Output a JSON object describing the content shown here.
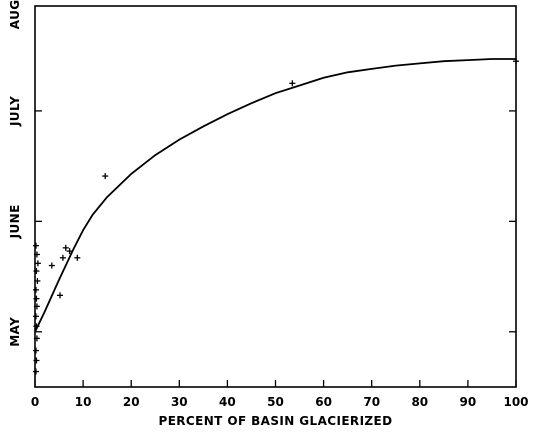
{
  "chart_data": {
    "type": "scatter",
    "title": "",
    "xlabel": "PERCENT OF BASIN GLACIERIZED",
    "ylabel": "",
    "xlim": [
      0,
      100
    ],
    "ylim": [
      0,
      3.45
    ],
    "x_ticks": [
      0,
      10,
      20,
      30,
      40,
      50,
      60,
      70,
      80,
      90,
      100
    ],
    "y_ticks": [
      0.5,
      1.5,
      2.5
    ],
    "y_month_labels": [
      {
        "label": "MAY",
        "value": 0.0
      },
      {
        "label": "JUNE",
        "value": 1.0
      },
      {
        "label": "JULY",
        "value": 2.0
      },
      {
        "label": "AUGUST",
        "value": 3.0
      }
    ],
    "grid": false,
    "series": [
      {
        "kind": "points",
        "marker": "+",
        "points": [
          [
            0.2,
            0.14
          ],
          [
            0.3,
            0.24
          ],
          [
            0.2,
            0.33
          ],
          [
            0.4,
            0.44
          ],
          [
            0.3,
            0.55
          ],
          [
            0.2,
            0.64
          ],
          [
            0.4,
            0.73
          ],
          [
            0.3,
            0.8
          ],
          [
            0.2,
            0.88
          ],
          [
            0.5,
            0.96
          ],
          [
            0.3,
            1.05
          ],
          [
            0.6,
            1.12
          ],
          [
            0.4,
            1.2
          ],
          [
            0.2,
            1.28
          ],
          [
            3.5,
            1.1
          ],
          [
            5.2,
            0.83
          ],
          [
            5.8,
            1.17
          ],
          [
            6.4,
            1.26
          ],
          [
            7.2,
            1.23
          ],
          [
            8.8,
            1.17
          ],
          [
            14.6,
            1.91
          ],
          [
            53.5,
            2.75
          ],
          [
            100.0,
            2.95
          ]
        ]
      },
      {
        "kind": "fitted-curve",
        "points": [
          [
            0,
            0.5
          ],
          [
            2,
            0.68
          ],
          [
            5,
            0.97
          ],
          [
            8,
            1.25
          ],
          [
            10,
            1.42
          ],
          [
            12,
            1.56
          ],
          [
            15,
            1.72
          ],
          [
            20,
            1.93
          ],
          [
            25,
            2.1
          ],
          [
            30,
            2.24
          ],
          [
            35,
            2.36
          ],
          [
            40,
            2.47
          ],
          [
            45,
            2.57
          ],
          [
            50,
            2.66
          ],
          [
            55,
            2.73
          ],
          [
            60,
            2.8
          ],
          [
            65,
            2.85
          ],
          [
            70,
            2.88
          ],
          [
            75,
            2.91
          ],
          [
            80,
            2.93
          ],
          [
            85,
            2.95
          ],
          [
            90,
            2.96
          ],
          [
            95,
            2.97
          ],
          [
            100,
            2.97
          ]
        ]
      }
    ]
  }
}
